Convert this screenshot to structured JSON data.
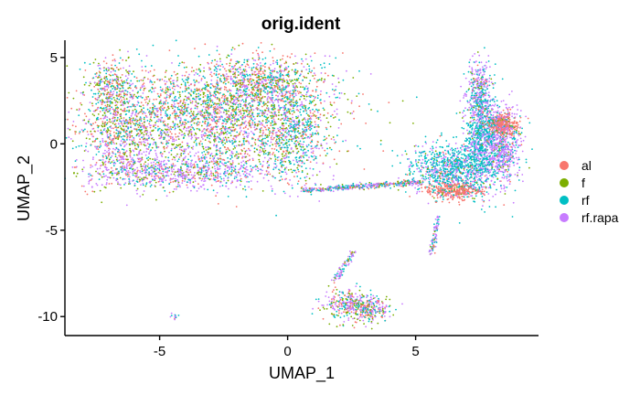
{
  "chart_data": {
    "type": "scatter",
    "title": "orig.ident",
    "xlabel": "UMAP_1",
    "ylabel": "UMAP_2",
    "xlim": [
      -8.7,
      9.8
    ],
    "ylim": [
      -11.1,
      6.0
    ],
    "xticks": [
      -5,
      0,
      5
    ],
    "yticks": [
      5,
      0,
      -5,
      -10
    ],
    "grid": false,
    "legend_position": "right",
    "series": [
      {
        "name": "al",
        "color": "#F8766D"
      },
      {
        "name": "f",
        "color": "#7CAE00"
      },
      {
        "name": "rf",
        "color": "#00BFC4"
      },
      {
        "name": "rf.rapa",
        "color": "#C77CFF"
      }
    ],
    "clusters": [
      {
        "cx": -2.8,
        "cy": 1.6,
        "sx": 2.3,
        "sy": 1.6,
        "n": 2600,
        "weights": [
          0.25,
          0.25,
          0.25,
          0.25
        ]
      },
      {
        "cx": -6.5,
        "cy": 0.6,
        "sx": 0.8,
        "sy": 1.4,
        "n": 700,
        "weights": [
          0.22,
          0.22,
          0.22,
          0.34
        ]
      },
      {
        "cx": -1.0,
        "cy": 3.5,
        "sx": 1.3,
        "sy": 0.8,
        "n": 700,
        "weights": [
          0.25,
          0.25,
          0.25,
          0.25
        ]
      },
      {
        "cx": -6.9,
        "cy": 3.4,
        "sx": 0.5,
        "sy": 0.7,
        "n": 260,
        "weights": [
          0.25,
          0.25,
          0.25,
          0.25
        ]
      },
      {
        "cx": 0.3,
        "cy": 0.4,
        "sx": 0.6,
        "sy": 1.5,
        "n": 450,
        "weights": [
          0.15,
          0.15,
          0.45,
          0.25
        ]
      },
      {
        "cx": -4.2,
        "cy": -1.6,
        "sx": 1.9,
        "sy": 0.5,
        "n": 800,
        "weights": [
          0.1,
          0.1,
          0.2,
          0.6
        ]
      },
      {
        "cx": 6.4,
        "cy": -1.4,
        "sx": 0.8,
        "sy": 0.7,
        "n": 900,
        "weights": [
          0.05,
          0.05,
          0.6,
          0.3
        ]
      },
      {
        "cx": 7.6,
        "cy": 0.3,
        "sx": 0.35,
        "sy": 1.4,
        "n": 900,
        "weights": [
          0.02,
          0.03,
          0.6,
          0.35
        ]
      },
      {
        "cx": 8.4,
        "cy": -0.1,
        "sx": 0.35,
        "sy": 1.1,
        "n": 600,
        "weights": [
          0.05,
          0.05,
          0.2,
          0.7
        ]
      },
      {
        "cx": 8.4,
        "cy": 1.1,
        "sx": 0.3,
        "sy": 0.3,
        "n": 320,
        "weights": [
          0.85,
          0.05,
          0.05,
          0.05
        ]
      },
      {
        "cx": 7.5,
        "cy": 3.1,
        "sx": 0.25,
        "sy": 0.9,
        "n": 300,
        "weights": [
          0.05,
          0.05,
          0.3,
          0.6
        ]
      },
      {
        "cx": 6.5,
        "cy": -2.7,
        "sx": 0.5,
        "sy": 0.25,
        "n": 340,
        "weights": [
          0.85,
          0.05,
          0.05,
          0.05
        ]
      },
      {
        "cx": 2.3,
        "cy": -9.3,
        "sx": 0.5,
        "sy": 0.45,
        "n": 260,
        "weights": [
          0.2,
          0.2,
          0.2,
          0.4
        ]
      },
      {
        "cx": 3.2,
        "cy": -9.6,
        "sx": 0.45,
        "sy": 0.4,
        "n": 240,
        "weights": [
          0.2,
          0.2,
          0.2,
          0.4
        ]
      },
      {
        "cx": -4.4,
        "cy": -10.0,
        "sx": 0.08,
        "sy": 0.08,
        "n": 12,
        "weights": [
          0.1,
          0.1,
          0.3,
          0.5
        ]
      }
    ],
    "strands": [
      {
        "from": [
          0.6,
          -2.7
        ],
        "to": [
          5.2,
          -2.2
        ],
        "spread": 0.08,
        "n": 420,
        "weights": [
          0.15,
          0.15,
          0.3,
          0.4
        ]
      },
      {
        "from": [
          1.8,
          -8.0
        ],
        "to": [
          2.6,
          -6.2
        ],
        "spread": 0.07,
        "n": 80,
        "weights": [
          0.1,
          0.1,
          0.3,
          0.5
        ]
      },
      {
        "from": [
          5.6,
          -6.4
        ],
        "to": [
          5.9,
          -4.2
        ],
        "spread": 0.06,
        "n": 80,
        "weights": [
          0.1,
          0.1,
          0.3,
          0.5
        ]
      }
    ]
  }
}
